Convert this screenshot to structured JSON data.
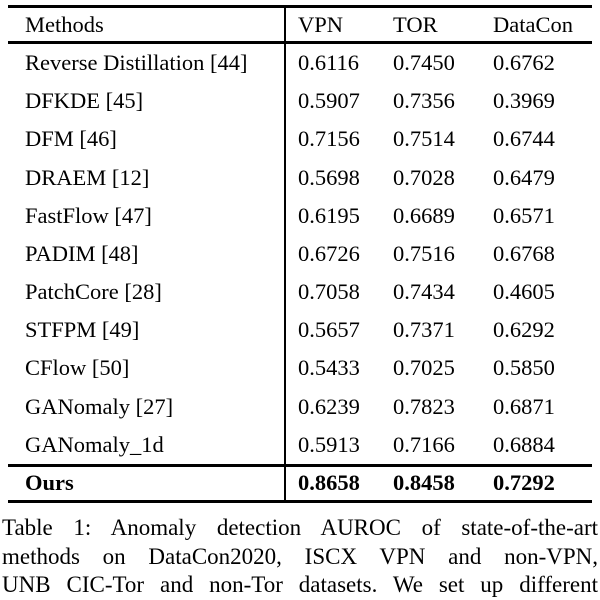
{
  "colors": {
    "text": "#000000",
    "background": "#ffffff",
    "rule": "#000000"
  },
  "table": {
    "header": {
      "methods": "Methods",
      "vpn": "VPN",
      "tor": "TOR",
      "datacon": "DataCon"
    },
    "rows": [
      {
        "method": "Reverse Distillation [44]",
        "vpn": "0.6116",
        "tor": "0.7450",
        "datacon": "0.6762"
      },
      {
        "method": "DFKDE [45]",
        "vpn": "0.5907",
        "tor": "0.7356",
        "datacon": "0.3969"
      },
      {
        "method": "DFM [46]",
        "vpn": "0.7156",
        "tor": "0.7514",
        "datacon": "0.6744"
      },
      {
        "method": "DRAEM [12]",
        "vpn": "0.5698",
        "tor": "0.7028",
        "datacon": "0.6479"
      },
      {
        "method": "FastFlow [47]",
        "vpn": "0.6195",
        "tor": "0.6689",
        "datacon": "0.6571"
      },
      {
        "method": "PADIM [48]",
        "vpn": "0.6726",
        "tor": "0.7516",
        "datacon": "0.6768"
      },
      {
        "method": "PatchCore [28]",
        "vpn": "0.7058",
        "tor": "0.7434",
        "datacon": "0.4605"
      },
      {
        "method": "STFPM [49]",
        "vpn": "0.5657",
        "tor": "0.7371",
        "datacon": "0.6292"
      },
      {
        "method": "CFlow [50]",
        "vpn": "0.5433",
        "tor": "0.7025",
        "datacon": "0.5850"
      },
      {
        "method": "GANomaly [27]",
        "vpn": "0.6239",
        "tor": "0.7823",
        "datacon": "0.6871"
      },
      {
        "method": "GANomaly_1d",
        "vpn": "0.5913",
        "tor": "0.7166",
        "datacon": "0.6884"
      }
    ],
    "ours": {
      "method": "Ours",
      "vpn": "0.8658",
      "tor": "0.8458",
      "datacon": "0.7292"
    }
  },
  "caption": {
    "line1": "Table 1: Anomaly detection AUROC of state-of-the-art",
    "line2": "methods on DataCon2020, ISCX VPN and non-VPN,",
    "line3": "UNB CIC-Tor and non-Tor datasets. We set up different"
  },
  "chart_data": {
    "type": "table",
    "title": "Anomaly detection AUROC of state-of-the-art methods",
    "columns": [
      "Methods",
      "VPN",
      "TOR",
      "DataCon"
    ],
    "series": [
      {
        "name": "VPN",
        "values": [
          0.6116,
          0.5907,
          0.7156,
          0.5698,
          0.6195,
          0.6726,
          0.7058,
          0.5657,
          0.5433,
          0.6239,
          0.5913,
          0.8658
        ]
      },
      {
        "name": "TOR",
        "values": [
          0.745,
          0.7356,
          0.7514,
          0.7028,
          0.6689,
          0.7516,
          0.7434,
          0.7371,
          0.7025,
          0.7823,
          0.7166,
          0.8458
        ]
      },
      {
        "name": "DataCon",
        "values": [
          0.6762,
          0.3969,
          0.6744,
          0.6479,
          0.6571,
          0.6768,
          0.4605,
          0.6292,
          0.585,
          0.6871,
          0.6884,
          0.7292
        ]
      }
    ],
    "categories": [
      "Reverse Distillation [44]",
      "DFKDE [45]",
      "DFM [46]",
      "DRAEM [12]",
      "FastFlow [47]",
      "PADIM [48]",
      "PatchCore [28]",
      "STFPM [49]",
      "CFlow [50]",
      "GANomaly [27]",
      "GANomaly_1d",
      "Ours"
    ]
  }
}
